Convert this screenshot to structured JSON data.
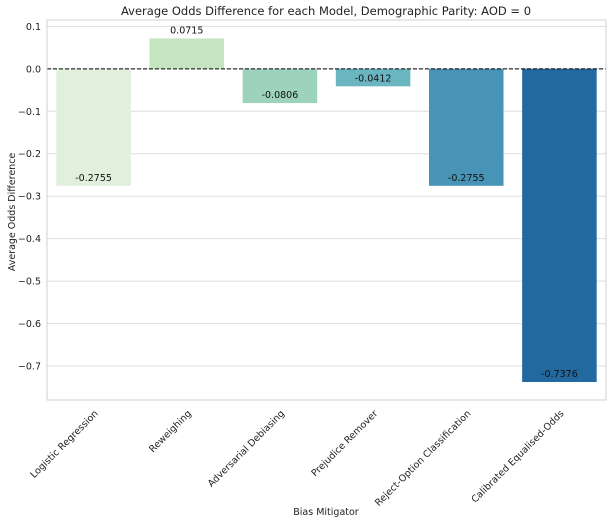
{
  "chart_data": {
    "type": "bar",
    "title": "Average Odds Difference for each Model, Demographic Parity: AOD = 0",
    "xlabel": "Bias Mitigator",
    "ylabel": "Average Odds Difference",
    "categories": [
      "Logistic Regression",
      "Reweighing",
      "Adversarial Debiasing",
      "Prejudice Remover",
      "Reject-Option Classification",
      "Calibrated Equalised-Odds"
    ],
    "values": [
      -0.2755,
      0.0715,
      -0.0806,
      -0.0412,
      -0.2755,
      -0.7376
    ],
    "value_labels": [
      "-0.2755",
      "0.0715",
      "-0.0806",
      "-0.0412",
      "-0.2755",
      "-0.7376"
    ],
    "colors": [
      "#e0f0dc",
      "#c5e5c1",
      "#9dd2bc",
      "#6ab5c0",
      "#4794b7",
      "#2269a0"
    ],
    "ylim": [
      -0.78,
      0.115
    ],
    "yticks": [
      0.1,
      0.0,
      -0.1,
      -0.2,
      -0.3,
      -0.4,
      -0.5,
      -0.6,
      -0.7
    ],
    "ytick_labels": [
      "0.1",
      "0.0",
      "−0.1",
      "−0.2",
      "−0.3",
      "−0.4",
      "−0.5",
      "−0.6",
      "−0.7"
    ],
    "grid": true,
    "reference_line": 0
  }
}
